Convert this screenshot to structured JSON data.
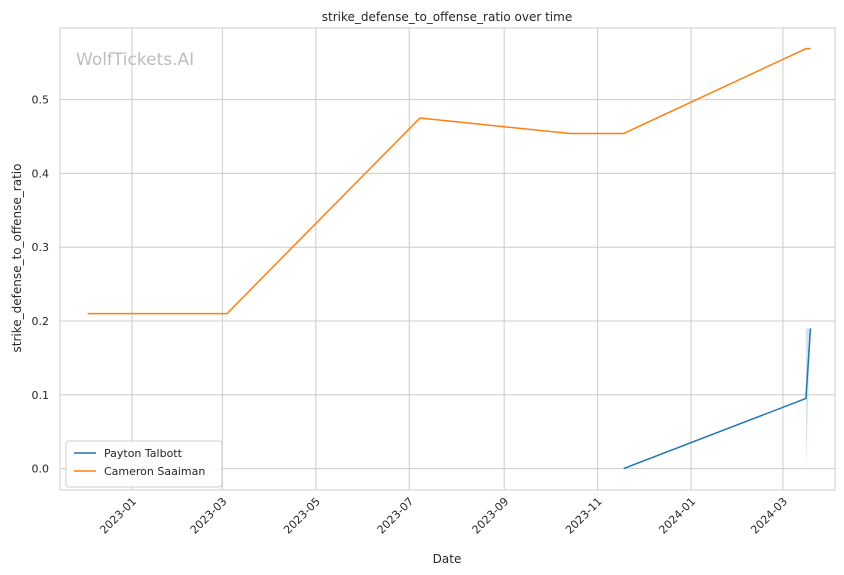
{
  "chart_data": {
    "type": "line",
    "title": "strike_defense_to_offense_ratio over time",
    "xlabel": "Date",
    "ylabel": "strike_defense_to_offense_ratio",
    "watermark": "WolfTickets.AI",
    "x_range": [
      "2022-11-15",
      "2024-04-04"
    ],
    "ylim": [
      -0.029,
      0.597
    ],
    "x_ticks": [
      {
        "date": "2023-01-01",
        "label": "2023-01"
      },
      {
        "date": "2023-03-01",
        "label": "2023-03"
      },
      {
        "date": "2023-05-01",
        "label": "2023-05"
      },
      {
        "date": "2023-07-01",
        "label": "2023-07"
      },
      {
        "date": "2023-09-01",
        "label": "2023-09"
      },
      {
        "date": "2023-11-01",
        "label": "2023-11"
      },
      {
        "date": "2024-01-01",
        "label": "2024-01"
      },
      {
        "date": "2024-03-01",
        "label": "2024-03"
      }
    ],
    "y_ticks": [
      {
        "value": 0.0,
        "label": "0.0"
      },
      {
        "value": 0.1,
        "label": "0.1"
      },
      {
        "value": 0.2,
        "label": "0.2"
      },
      {
        "value": 0.3,
        "label": "0.3"
      },
      {
        "value": 0.4,
        "label": "0.4"
      },
      {
        "value": 0.5,
        "label": "0.5"
      }
    ],
    "grid": true,
    "legend_position": "lower-left",
    "series": [
      {
        "name": "Payton Talbott",
        "color": "#1f77b4",
        "points": [
          {
            "x": "2023-11-18",
            "y": 0.0
          },
          {
            "x": "2024-03-16",
            "y": 0.095
          },
          {
            "x": "2024-03-19",
            "y": 0.19
          }
        ],
        "band": [
          {
            "x": "2024-03-16",
            "low": 0.0,
            "high": 0.19
          },
          {
            "x": "2024-03-19",
            "low": 0.19,
            "high": 0.19
          }
        ]
      },
      {
        "name": "Cameron Saaiman",
        "color": "#ff7f0e",
        "points": [
          {
            "x": "2022-12-03",
            "y": 0.21
          },
          {
            "x": "2023-03-04",
            "y": 0.21
          },
          {
            "x": "2023-07-08",
            "y": 0.475
          },
          {
            "x": "2023-10-14",
            "y": 0.454
          },
          {
            "x": "2023-11-18",
            "y": 0.454
          },
          {
            "x": "2024-03-16",
            "y": 0.569
          },
          {
            "x": "2024-03-19",
            "y": 0.569
          }
        ]
      }
    ]
  }
}
